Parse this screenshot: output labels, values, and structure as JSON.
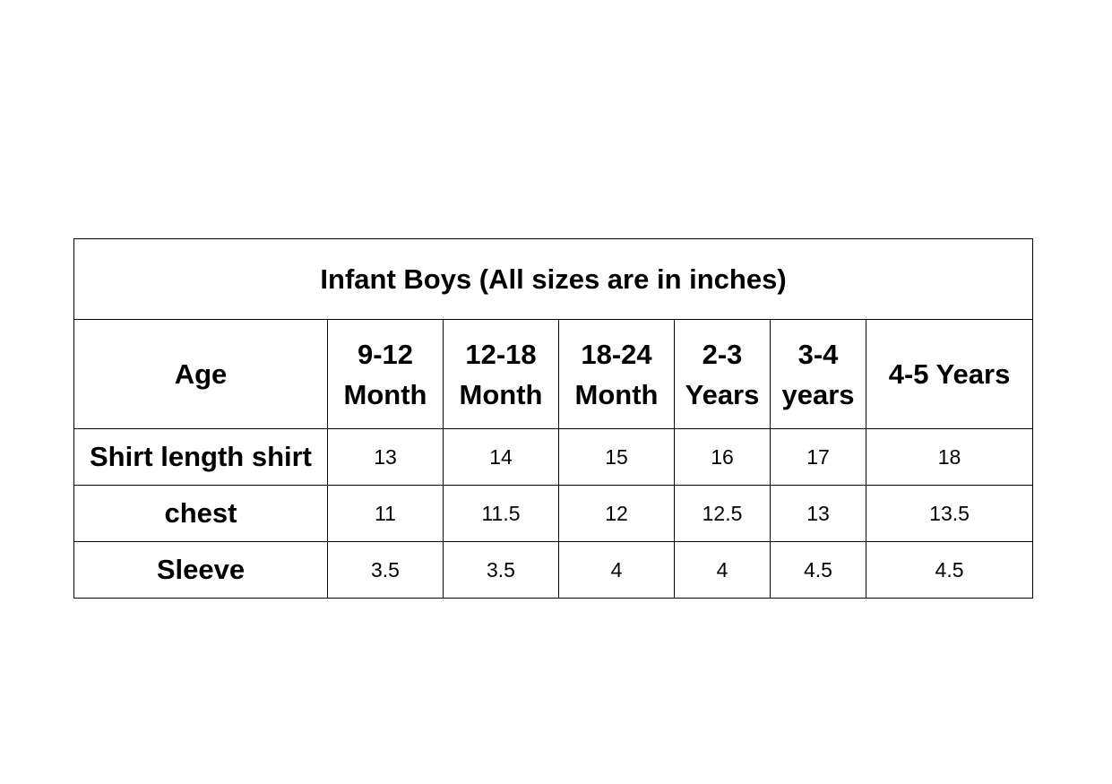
{
  "title": "Infant Boys (All sizes are in inches)",
  "header": {
    "row_label": "Age",
    "columns": [
      {
        "line1": "9-12",
        "line2": "Month"
      },
      {
        "line1": "12-18",
        "line2": "Month"
      },
      {
        "line1": "18-24",
        "line2": "Month"
      },
      {
        "line1": "2-3",
        "line2": "Years"
      },
      {
        "line1": "3-4",
        "line2": "years"
      },
      {
        "line1": "4-5 Years",
        "line2": ""
      }
    ]
  },
  "rows": [
    {
      "label": "Shirt length shirt",
      "values": [
        "13",
        "14",
        "15",
        "16",
        "17",
        "18"
      ]
    },
    {
      "label": "chest",
      "values": [
        "11",
        "11.5",
        "12",
        "12.5",
        "13",
        "13.5"
      ]
    },
    {
      "label": "Sleeve",
      "values": [
        "3.5",
        "3.5",
        "4",
        "4",
        "4.5",
        "4.5"
      ]
    }
  ]
}
